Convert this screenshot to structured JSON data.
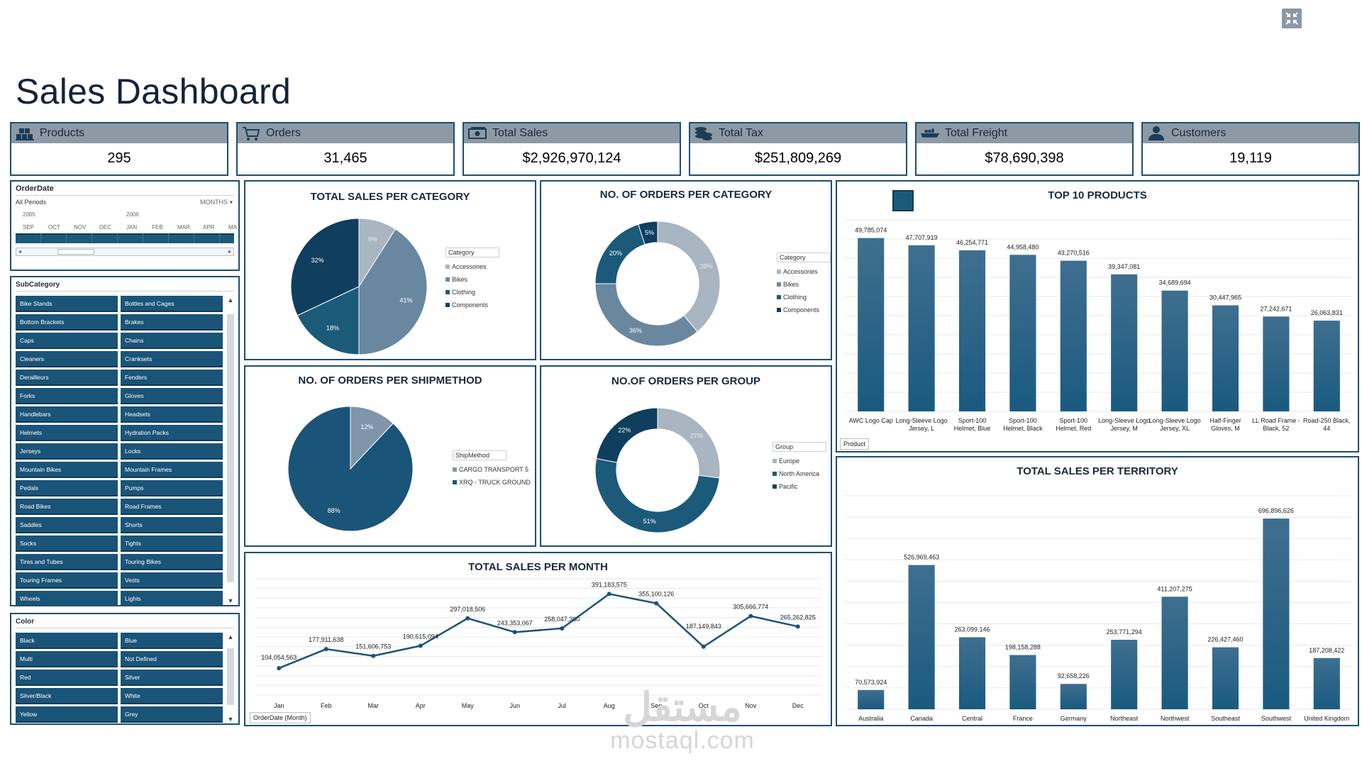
{
  "page_title": "Sales Dashboard",
  "corner_icon": "minimize-icon",
  "colors": {
    "accent": "#1f4e70",
    "header_grey": "#8c9aa6",
    "bar": "#1c5a7a",
    "slicer": "#1a5478"
  },
  "kpis": [
    {
      "label": "Products",
      "value": "295",
      "icon": "boxes-icon"
    },
    {
      "label": "Orders",
      "value": "31,465",
      "icon": "cart-icon"
    },
    {
      "label": "Total Sales",
      "value": "$2,926,970,124",
      "icon": "cash-icon"
    },
    {
      "label": "Total Tax",
      "value": "$251,809,269",
      "icon": "coins-icon"
    },
    {
      "label": "Total Freight",
      "value": "$78,690,398",
      "icon": "ship-icon"
    },
    {
      "label": "Customers",
      "value": "19,119",
      "icon": "user-icon"
    }
  ],
  "timeline": {
    "title": "OrderDate",
    "all_periods": "All Periods",
    "unit": "MONTHS",
    "years": [
      "2005",
      "2006"
    ],
    "months": [
      "SEP",
      "OCT",
      "NOV",
      "DEC",
      "JAN",
      "FEB",
      "MAR",
      "APR",
      "MA"
    ]
  },
  "subcategory": {
    "title": "SubCategory",
    "items": [
      "Bike Stands",
      "Bottles and Cages",
      "Bottom Brackets",
      "Brakes",
      "Caps",
      "Chains",
      "Cleaners",
      "Cranksets",
      "Derailleurs",
      "Fenders",
      "Forks",
      "Gloves",
      "Handlebars",
      "Headsets",
      "Helmets",
      "Hydration Packs",
      "Jerseys",
      "Locks",
      "Mountain Bikes",
      "Mountain Frames",
      "Pedals",
      "Pumps",
      "Road Bikes",
      "Road Frames",
      "Saddles",
      "Shorts",
      "Socks",
      "Tights",
      "Tires and Tubes",
      "Touring Bikes",
      "Touring Frames",
      "Vests",
      "Wheels",
      "Lights"
    ]
  },
  "color_slicer": {
    "title": "Color",
    "items": [
      "Black",
      "Blue",
      "Multi",
      "Not Defined",
      "Red",
      "Silver",
      "Silver/Black",
      "White",
      "Yellow",
      "Grey"
    ]
  },
  "charts": {
    "sales_per_category": {
      "title": "TOTAL SALES PER CATEGORY",
      "legend_title": "Category",
      "legend": [
        "Accessories",
        "Bikes",
        "Clothing",
        "Components"
      ],
      "chart_data": {
        "type": "pie",
        "slices": [
          {
            "label": "9%",
            "value": 9,
            "color": "#a9b5c1"
          },
          {
            "label": "41%",
            "value": 41,
            "color": "#6a87a0"
          },
          {
            "label": "18%",
            "value": 18,
            "color": "#1c5a7a"
          },
          {
            "label": "32%",
            "value": 32,
            "color": "#0f3e5e"
          }
        ],
        "legend_colors": [
          "#a9b5c1",
          "#6a87a0",
          "#1c5a7a",
          "#0f3e5e"
        ]
      }
    },
    "orders_per_category": {
      "title": "NO. OF ORDERS PER CATEGORY",
      "legend_title": "Category",
      "legend": [
        "Accessories",
        "Bikes",
        "Clothing",
        "Components"
      ],
      "chart_data": {
        "type": "pie",
        "donut": true,
        "slices": [
          {
            "label": "39%",
            "value": 39,
            "color": "#a9b5c1"
          },
          {
            "label": "36%",
            "value": 36,
            "color": "#6a87a0"
          },
          {
            "label": "20%",
            "value": 20,
            "color": "#1c5a7a"
          },
          {
            "label": "5%",
            "value": 5,
            "color": "#0f3e5e"
          }
        ],
        "legend_colors": [
          "#a9b5c1",
          "#6a87a0",
          "#1c5a7a",
          "#0f3e5e"
        ]
      }
    },
    "orders_per_shipmethod": {
      "title": "NO. OF ORDERS PER SHIPMETHOD",
      "legend_title": "ShipMethod",
      "legend": [
        "CARGO TRANSPORT 5",
        "XRQ - TRUCK GROUND"
      ],
      "chart_data": {
        "type": "pie",
        "slices": [
          {
            "label": "12%",
            "value": 12,
            "color": "#7f95a9"
          },
          {
            "label": "88%",
            "value": 88,
            "color": "#1a5478"
          }
        ],
        "legend_colors": [
          "#7f95a9",
          "#1a5478"
        ]
      }
    },
    "orders_per_group": {
      "title": "NO.OF ORDERS PER GROUP",
      "legend_title": "Group",
      "legend": [
        "Europe",
        "North America",
        "Pacific"
      ],
      "chart_data": {
        "type": "pie",
        "donut": true,
        "slices": [
          {
            "label": "27%",
            "value": 27,
            "color": "#a9b5c1"
          },
          {
            "label": "51%",
            "value": 51,
            "color": "#1c5a7a"
          },
          {
            "label": "22%",
            "value": 22,
            "color": "#0f3e5e"
          }
        ],
        "legend_colors": [
          "#a9b5c1",
          "#1c5a7a",
          "#0f3e5e"
        ]
      }
    },
    "top10_products": {
      "title": "TOP 10 PRODUCTS",
      "field_button": "Product",
      "chart_data": {
        "type": "bar",
        "categories": [
          [
            "AWC Logo Cap"
          ],
          [
            "Long-Sleeve Logo",
            "Jersey, L"
          ],
          [
            "Sport-100",
            "Helmet, Blue"
          ],
          [
            "Sport-100",
            "Helmet, Black"
          ],
          [
            "Sport-100",
            "Helmet, Red"
          ],
          [
            "Long-Sleeve Logo",
            "Jersey, M"
          ],
          [
            "Long-Sleeve Logo",
            "Jersey, XL"
          ],
          [
            "Half-Finger",
            "Gloves, M"
          ],
          [
            "LL Road Frame -",
            "Black, 52"
          ],
          [
            "Road-250 Black,",
            "44"
          ]
        ],
        "values": [
          49785074,
          47707919,
          46254771,
          44958480,
          43270516,
          39347081,
          34689694,
          30447965,
          27242671,
          26063831
        ],
        "labels": [
          "49,785,074",
          "47,707,919",
          "46,254,771",
          "44,958,480",
          "43,270,516",
          "39,347,081",
          "34,689,694",
          "30,447,965",
          "27,242,671",
          "26,063,831"
        ],
        "ylim": [
          0,
          55000000
        ]
      }
    },
    "sales_per_month": {
      "title": "TOTAL SALES PER MONTH",
      "field_button": "OrderDate (Month)",
      "chart_data": {
        "type": "line",
        "categories": [
          "Jan",
          "Feb",
          "Mar",
          "Apr",
          "May",
          "Jun",
          "Jul",
          "Aug",
          "Sep",
          "Oct",
          "Nov",
          "Dec"
        ],
        "values": [
          104054563,
          177911638,
          151606753,
          190615094,
          297018506,
          243353067,
          258047360,
          391183575,
          355100126,
          187149843,
          305666774,
          265262825
        ],
        "labels": [
          "104,054,563",
          "177,911,638",
          "151,606,753",
          "190,615,094",
          "297,018,506",
          "243,353,067",
          "258,047,360",
          "391,183,575",
          "355,100,126",
          "187,149,843",
          "305,666,774",
          "265,262,825"
        ],
        "ylim": [
          0,
          450000000
        ]
      }
    },
    "sales_per_territory": {
      "title": "TOTAL SALES PER TERRITORY",
      "chart_data": {
        "type": "bar",
        "categories": [
          "Australia",
          "Canada",
          "Central",
          "France",
          "Germany",
          "Northeast",
          "Northwest",
          "Southeast",
          "Southwest",
          "United Kingdom"
        ],
        "values": [
          70573924,
          526969463,
          263099146,
          198158288,
          92658226,
          253771294,
          411207275,
          226427460,
          696896626,
          187208422
        ],
        "labels": [
          "70,573,924",
          "526,969,463",
          "263,099,146",
          "198,158,288",
          "92,658,226",
          "253,771,294",
          "411,207,275",
          "226,427,460",
          "696,896,626",
          "187,208,422"
        ],
        "ylim": [
          0,
          780000000
        ]
      }
    }
  },
  "watermark": {
    "arabic": "مستقل",
    "latin": "mostaql.com"
  }
}
